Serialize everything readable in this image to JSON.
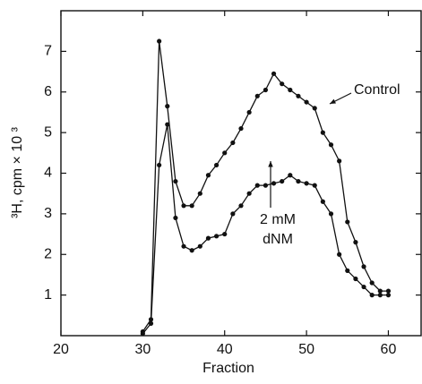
{
  "chart_data": {
    "type": "line",
    "x_label": "Fraction",
    "y_label": "³H, cpm × 10 ³",
    "xlim": [
      20,
      64
    ],
    "xticks": [
      20,
      30,
      40,
      50,
      60
    ],
    "ylim": [
      0,
      8
    ],
    "yticks": [
      1,
      2,
      3,
      4,
      5,
      6,
      7
    ],
    "x": [
      30,
      31,
      32,
      33,
      34,
      35,
      36,
      37,
      38,
      39,
      40,
      41,
      42,
      43,
      44,
      45,
      46,
      47,
      48,
      49,
      50,
      51,
      52,
      53,
      54,
      55,
      56,
      57,
      58,
      59,
      60
    ],
    "series": [
      {
        "color": "#111111",
        "values": [
          0.1,
          0.4,
          7.25,
          5.65,
          3.8,
          3.2,
          3.2,
          3.5,
          3.95,
          4.2,
          4.5,
          4.75,
          5.1,
          5.5,
          5.9,
          6.05,
          6.45,
          6.2,
          6.05,
          5.9,
          5.75,
          5.6,
          5.0,
          4.7,
          4.3,
          2.8,
          2.3,
          1.7,
          1.3,
          1.1,
          1.1
        ]
      },
      {
        "color": "#111111",
        "values": [
          0.05,
          0.3,
          4.2,
          5.2,
          2.9,
          2.2,
          2.1,
          2.2,
          2.4,
          2.45,
          2.5,
          3.0,
          3.2,
          3.5,
          3.7,
          3.7,
          3.75,
          3.8,
          3.95,
          3.8,
          3.75,
          3.7,
          3.3,
          3.0,
          2.0,
          1.6,
          1.4,
          1.2,
          1.0,
          1.0,
          1.0
        ]
      }
    ],
    "annotations": [
      {
        "text": "Control"
      },
      {
        "text": [
          "2 mM",
          "dNM"
        ]
      }
    ]
  }
}
